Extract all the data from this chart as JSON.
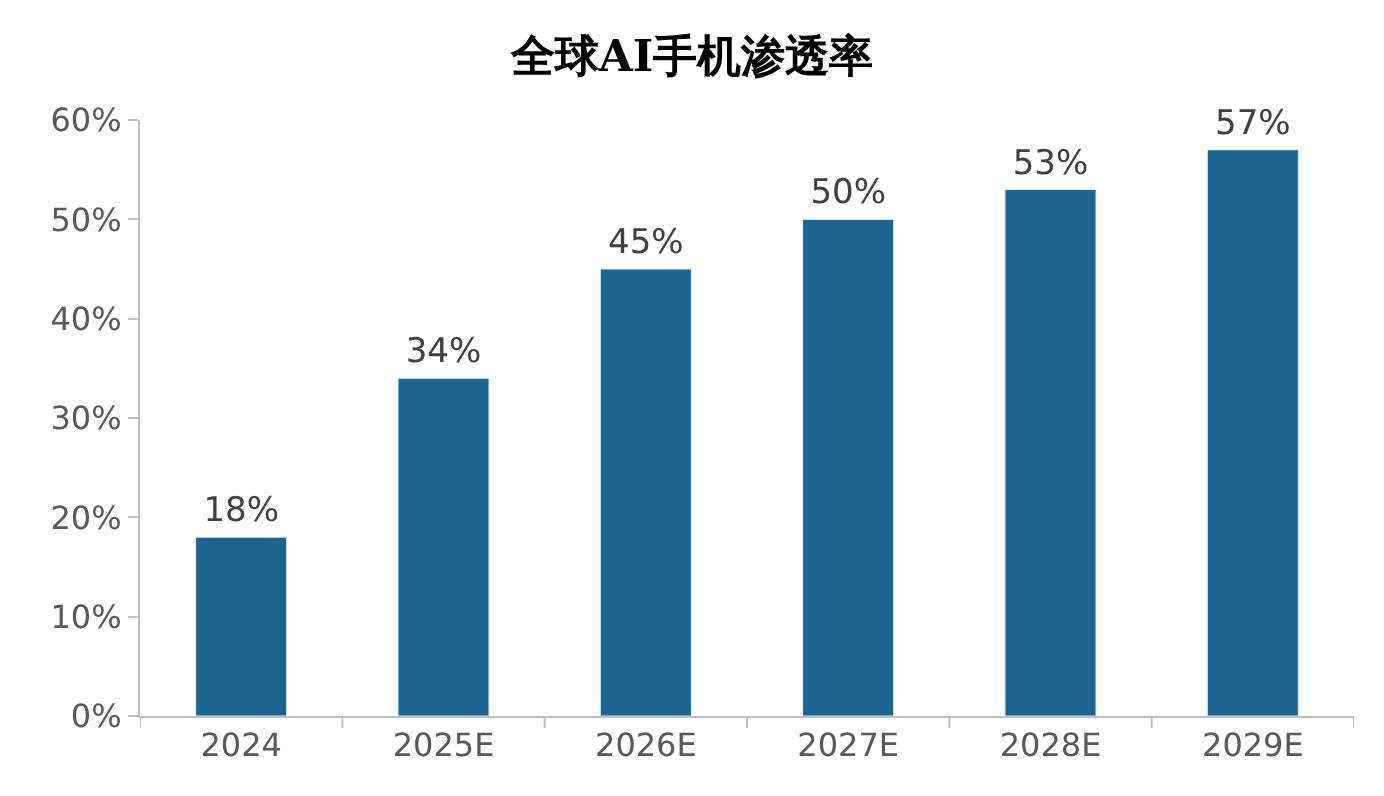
{
  "chart_data": {
    "type": "bar",
    "title": "全球AI手机渗透率",
    "categories": [
      "2024",
      "2025E",
      "2026E",
      "2027E",
      "2028E",
      "2029E"
    ],
    "values": [
      18,
      34,
      45,
      50,
      53,
      57
    ],
    "value_labels": [
      "18%",
      "34%",
      "45%",
      "50%",
      "53%",
      "57%"
    ],
    "color": "#1a6690",
    "ylim": [
      0,
      60
    ],
    "yticks": [
      {
        "value": 0,
        "label": "0%"
      },
      {
        "value": 10,
        "label": "10%"
      },
      {
        "value": 20,
        "label": "20%"
      },
      {
        "value": 30,
        "label": "30%"
      },
      {
        "value": 40,
        "label": "40%"
      },
      {
        "value": 50,
        "label": "50%"
      },
      {
        "value": 60,
        "label": "60%"
      }
    ],
    "legend": false
  }
}
